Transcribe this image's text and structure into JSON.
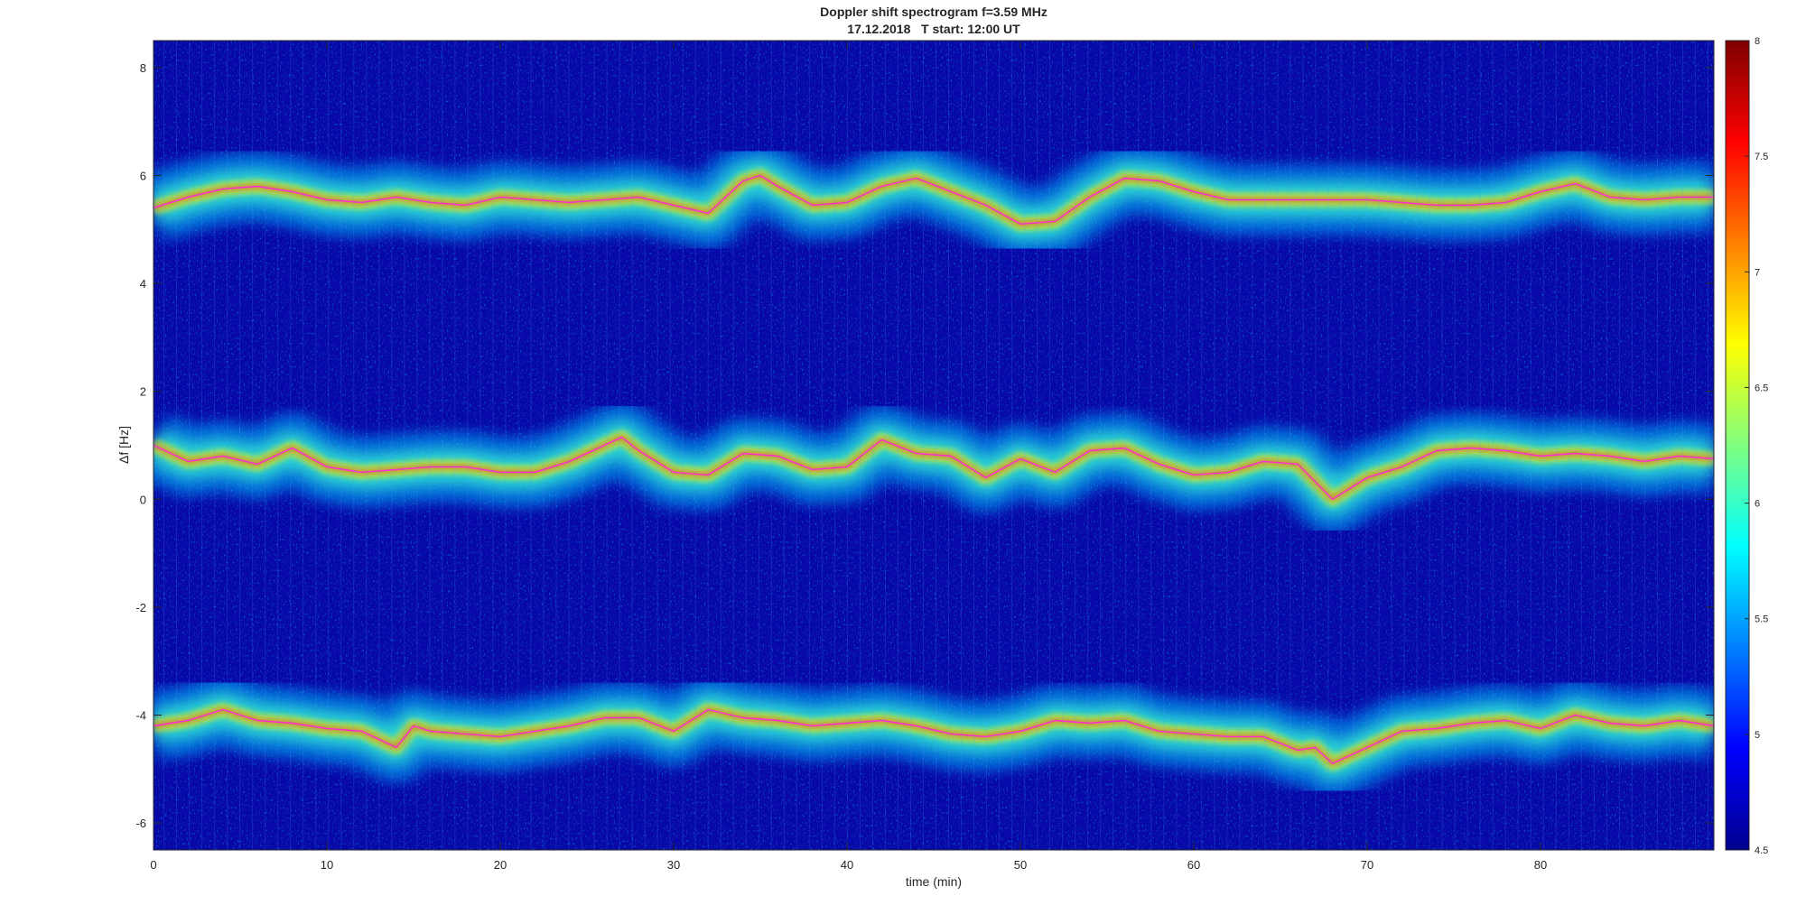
{
  "chart_data": {
    "type": "heatmap",
    "title_line1": "Doppler shift spectrogram f=3.59 MHz",
    "title_line2": "17.12.2018   T start: 12:00 UT",
    "xlabel": "time (min)",
    "ylabel": "Δf [Hz]",
    "xlim": [
      0,
      90
    ],
    "ylim": [
      -6.5,
      8.5
    ],
    "xticks": [
      "0",
      "10",
      "20",
      "30",
      "40",
      "50",
      "60",
      "70",
      "80"
    ],
    "xtick_values": [
      0,
      10,
      20,
      30,
      40,
      50,
      60,
      70,
      80
    ],
    "yticks": [
      "-6",
      "-4",
      "-2",
      "0",
      "2",
      "4",
      "6",
      "8"
    ],
    "ytick_values": [
      -6,
      -4,
      -2,
      0,
      2,
      4,
      6,
      8
    ],
    "colorbar": {
      "range": [
        4.5,
        8
      ],
      "ticks": [
        "4.5",
        "5",
        "5.5",
        "6",
        "6.5",
        "7",
        "7.5",
        "8"
      ],
      "tick_values": [
        4.5,
        5,
        5.5,
        6,
        6.5,
        7,
        7.5,
        8
      ],
      "colormap": "jet"
    },
    "traces": [
      {
        "t": [
          0,
          2,
          4,
          6,
          8,
          10,
          12,
          14,
          16,
          18,
          20,
          22,
          24,
          26,
          28,
          30,
          32,
          34,
          35,
          36,
          38,
          40,
          42,
          44,
          46,
          48,
          50,
          52,
          54,
          56,
          58,
          60,
          62,
          64,
          66,
          68,
          70,
          72,
          74,
          76,
          78,
          80,
          82,
          84,
          86,
          88,
          90
        ],
        "f": [
          5.4,
          5.6,
          5.75,
          5.8,
          5.7,
          5.55,
          5.5,
          5.6,
          5.5,
          5.45,
          5.6,
          5.55,
          5.5,
          5.55,
          5.6,
          5.45,
          5.3,
          5.9,
          6.0,
          5.8,
          5.45,
          5.5,
          5.8,
          5.95,
          5.7,
          5.45,
          5.1,
          5.15,
          5.6,
          5.95,
          5.9,
          5.7,
          5.55,
          5.55,
          5.55,
          5.55,
          5.55,
          5.5,
          5.45,
          5.45,
          5.5,
          5.7,
          5.85,
          5.6,
          5.55,
          5.6,
          5.6
        ]
      },
      {
        "t": [
          0,
          2,
          4,
          6,
          8,
          10,
          12,
          14,
          16,
          18,
          20,
          22,
          24,
          26,
          27,
          28,
          30,
          32,
          34,
          36,
          38,
          40,
          42,
          44,
          46,
          48,
          50,
          52,
          54,
          56,
          58,
          60,
          62,
          64,
          66,
          68,
          70,
          72,
          74,
          76,
          78,
          80,
          82,
          84,
          86,
          88,
          90
        ],
        "f": [
          1.0,
          0.7,
          0.8,
          0.65,
          0.95,
          0.6,
          0.5,
          0.55,
          0.6,
          0.6,
          0.5,
          0.5,
          0.7,
          1.0,
          1.15,
          0.9,
          0.5,
          0.45,
          0.85,
          0.8,
          0.55,
          0.6,
          1.1,
          0.85,
          0.8,
          0.4,
          0.75,
          0.5,
          0.9,
          0.95,
          0.65,
          0.45,
          0.5,
          0.7,
          0.65,
          0.0,
          0.4,
          0.6,
          0.9,
          0.95,
          0.9,
          0.8,
          0.85,
          0.8,
          0.7,
          0.8,
          0.75
        ]
      },
      {
        "t": [
          0,
          2,
          4,
          6,
          8,
          10,
          12,
          14,
          15,
          16,
          18,
          20,
          22,
          24,
          26,
          28,
          30,
          32,
          34,
          36,
          38,
          40,
          42,
          44,
          46,
          48,
          50,
          52,
          54,
          56,
          58,
          60,
          62,
          64,
          66,
          67,
          68,
          70,
          72,
          74,
          76,
          78,
          80,
          82,
          84,
          86,
          88,
          90
        ],
        "f": [
          -4.2,
          -4.1,
          -3.9,
          -4.1,
          -4.15,
          -4.25,
          -4.3,
          -4.6,
          -4.2,
          -4.3,
          -4.35,
          -4.4,
          -4.3,
          -4.2,
          -4.05,
          -4.05,
          -4.3,
          -3.9,
          -4.05,
          -4.1,
          -4.2,
          -4.15,
          -4.1,
          -4.2,
          -4.35,
          -4.4,
          -4.3,
          -4.1,
          -4.15,
          -4.1,
          -4.3,
          -4.35,
          -4.4,
          -4.4,
          -4.65,
          -4.6,
          -4.9,
          -4.6,
          -4.3,
          -4.25,
          -4.15,
          -4.1,
          -4.25,
          -4.0,
          -4.15,
          -4.2,
          -4.1,
          -4.2
        ]
      }
    ]
  }
}
